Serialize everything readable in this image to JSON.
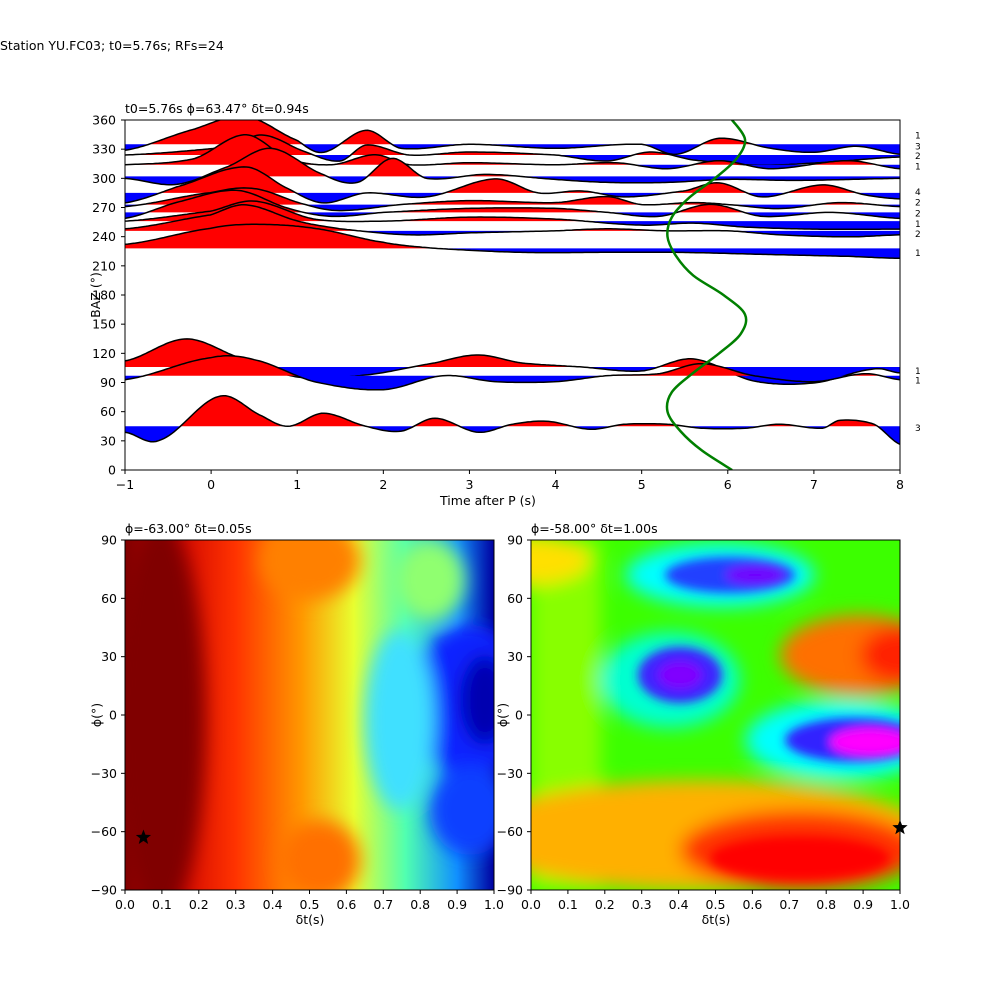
{
  "figure": {
    "suptitle": "Station YU.FC03; t0=5.76s; RFs=24"
  },
  "chart_data": [
    {
      "type": "line",
      "title": "t0=5.76s ϕ=63.47° δt=0.94s",
      "xlabel": "Time after P (s)",
      "ylabel": "BAZ (°)",
      "xlim": [
        -1,
        8
      ],
      "ylim": [
        0,
        360
      ],
      "xticks": [
        -1,
        0,
        1,
        2,
        3,
        4,
        5,
        6,
        7,
        8
      ],
      "yticks": [
        0,
        30,
        60,
        90,
        120,
        150,
        180,
        210,
        240,
        270,
        300,
        330,
        360
      ],
      "grid": false,
      "legend": "none",
      "fill_positive_color": "#ff0000",
      "fill_negative_color": "#0000ff",
      "baz_traces": [
        {
          "baz": 335,
          "count": "1",
          "wave": [
            [
              -1,
              -6
            ],
            [
              -0.2,
              15
            ],
            [
              0.4,
              28
            ],
            [
              1.0,
              4
            ],
            [
              1.3,
              -8
            ],
            [
              1.8,
              14
            ],
            [
              2.2,
              -4
            ],
            [
              3.0,
              0
            ],
            [
              4.0,
              -4
            ],
            [
              5.0,
              0
            ],
            [
              5.4,
              -10
            ],
            [
              5.9,
              6
            ],
            [
              6.5,
              -4
            ],
            [
              7.0,
              -8
            ],
            [
              7.5,
              -2
            ],
            [
              8,
              -10
            ]
          ]
        },
        {
          "baz": 324,
          "count": "3",
          "wave": [
            [
              -1,
              0
            ],
            [
              0.2,
              8
            ],
            [
              0.6,
              20
            ],
            [
              1.1,
              3
            ],
            [
              1.5,
              -6
            ],
            [
              1.8,
              10
            ],
            [
              2.3,
              0
            ],
            [
              3.0,
              3
            ],
            [
              4.0,
              0
            ],
            [
              4.6,
              -6
            ],
            [
              5.1,
              3
            ],
            [
              5.6,
              -5
            ],
            [
              6.3,
              -10
            ],
            [
              7.0,
              -8
            ],
            [
              8,
              -2
            ]
          ]
        },
        {
          "baz": 314,
          "count": "2",
          "wave": [
            [
              -1,
              0
            ],
            [
              -0.2,
              6
            ],
            [
              0.4,
              30
            ],
            [
              0.9,
              6
            ],
            [
              1.4,
              0
            ],
            [
              1.9,
              10
            ],
            [
              2.3,
              0
            ],
            [
              3.0,
              2
            ],
            [
              4.0,
              0
            ],
            [
              4.7,
              2
            ],
            [
              5.3,
              -4
            ],
            [
              5.9,
              4
            ],
            [
              6.5,
              -4
            ],
            [
              7.4,
              4
            ],
            [
              8,
              -4
            ]
          ]
        },
        {
          "baz": 302,
          "count": "1",
          "wave": [
            [
              -1,
              -2
            ],
            [
              -0.4,
              -8
            ],
            [
              0.2,
              10
            ],
            [
              0.7,
              28
            ],
            [
              1.3,
              2
            ],
            [
              1.7,
              -6
            ],
            [
              2.1,
              18
            ],
            [
              2.5,
              -2
            ],
            [
              3.2,
              2
            ],
            [
              4.0,
              -3
            ],
            [
              4.6,
              -6
            ],
            [
              5.3,
              -6
            ],
            [
              6.0,
              -3
            ],
            [
              6.8,
              -4
            ],
            [
              8,
              -2
            ]
          ]
        },
        {
          "baz": 285,
          "count": "4",
          "wave": [
            [
              -1,
              -10
            ],
            [
              -0.4,
              6
            ],
            [
              0.4,
              26
            ],
            [
              0.9,
              4
            ],
            [
              1.3,
              -10
            ],
            [
              1.8,
              0
            ],
            [
              2.5,
              -4
            ],
            [
              3.3,
              14
            ],
            [
              3.8,
              0
            ],
            [
              4.3,
              2
            ],
            [
              4.8,
              -4
            ],
            [
              5.5,
              2
            ],
            [
              5.9,
              10
            ],
            [
              6.4,
              -4
            ],
            [
              7.1,
              8
            ],
            [
              7.6,
              -2
            ],
            [
              8,
              -6
            ]
          ]
        },
        {
          "baz": 273,
          "count": "2",
          "wave": [
            [
              -1,
              -2
            ],
            [
              0.0,
              12
            ],
            [
              0.5,
              16
            ],
            [
              1.1,
              0
            ],
            [
              1.5,
              -6
            ],
            [
              2.2,
              0
            ],
            [
              3.0,
              4
            ],
            [
              4.0,
              2
            ],
            [
              4.6,
              8
            ],
            [
              5.0,
              0
            ],
            [
              5.6,
              2
            ],
            [
              6.0,
              0
            ],
            [
              6.6,
              -4
            ],
            [
              7.3,
              2
            ],
            [
              8,
              -2
            ]
          ]
        },
        {
          "baz": 265,
          "count": "2",
          "wave": [
            [
              -1,
              -6
            ],
            [
              -0.4,
              10
            ],
            [
              0.3,
              22
            ],
            [
              0.9,
              4
            ],
            [
              1.4,
              -4
            ],
            [
              2.0,
              0
            ],
            [
              3.0,
              4
            ],
            [
              4.0,
              4
            ],
            [
              4.6,
              0
            ],
            [
              5.2,
              -4
            ],
            [
              5.8,
              8
            ],
            [
              6.4,
              -4
            ],
            [
              7.2,
              0
            ],
            [
              8,
              -6
            ]
          ]
        },
        {
          "baz": 256,
          "count": "1",
          "wave": [
            [
              -1,
              0
            ],
            [
              0.0,
              10
            ],
            [
              0.5,
              20
            ],
            [
              1.2,
              2
            ],
            [
              2.0,
              0
            ],
            [
              3.0,
              4
            ],
            [
              4.0,
              2
            ],
            [
              5.0,
              -4
            ],
            [
              5.6,
              -2
            ],
            [
              6.2,
              -6
            ],
            [
              7.0,
              -8
            ],
            [
              8,
              -8
            ]
          ]
        },
        {
          "baz": 246,
          "count": "2",
          "wave": [
            [
              -1,
              2
            ],
            [
              0.0,
              16
            ],
            [
              0.4,
              26
            ],
            [
              1.0,
              10
            ],
            [
              1.5,
              2
            ],
            [
              2.3,
              -4
            ],
            [
              3.0,
              -2
            ],
            [
              4.0,
              0
            ],
            [
              4.6,
              2
            ],
            [
              5.3,
              0
            ],
            [
              6.0,
              0
            ],
            [
              6.6,
              -4
            ],
            [
              7.4,
              -6
            ],
            [
              8,
              -4
            ]
          ]
        },
        {
          "baz": 228,
          "count": "1",
          "wave": [
            [
              -1,
              4
            ],
            [
              0.0,
              20
            ],
            [
              0.5,
              24
            ],
            [
              1.2,
              20
            ],
            [
              2.0,
              6
            ],
            [
              2.6,
              0
            ],
            [
              3.6,
              -4
            ],
            [
              4.6,
              -4
            ],
            [
              5.4,
              -4
            ],
            [
              6.4,
              -6
            ],
            [
              7.4,
              -8
            ],
            [
              8,
              -10
            ]
          ]
        },
        {
          "baz": 106,
          "count": "1",
          "wave": [
            [
              -1,
              6
            ],
            [
              -0.3,
              28
            ],
            [
              0.3,
              10
            ],
            [
              1.0,
              -10
            ],
            [
              1.8,
              -8
            ],
            [
              2.6,
              4
            ],
            [
              3.1,
              12
            ],
            [
              3.6,
              4
            ],
            [
              4.3,
              0
            ],
            [
              5.0,
              -4
            ],
            [
              5.6,
              8
            ],
            [
              6.3,
              -14
            ],
            [
              7.0,
              -16
            ],
            [
              7.7,
              -2
            ],
            [
              8,
              -6
            ]
          ]
        },
        {
          "baz": 97,
          "count": "1",
          "wave": [
            [
              -1,
              -4
            ],
            [
              0.0,
              18
            ],
            [
              0.5,
              16
            ],
            [
              1.2,
              -6
            ],
            [
              2.0,
              -14
            ],
            [
              2.7,
              0
            ],
            [
              3.3,
              -6
            ],
            [
              4.0,
              -6
            ],
            [
              4.6,
              0
            ],
            [
              5.2,
              2
            ],
            [
              5.7,
              12
            ],
            [
              6.3,
              0
            ],
            [
              7.0,
              -6
            ],
            [
              7.6,
              2
            ],
            [
              8,
              -4
            ]
          ]
        },
        {
          "baz": 45,
          "count": "3",
          "wave": [
            [
              -1,
              -6
            ],
            [
              -0.6,
              -14
            ],
            [
              0.1,
              30
            ],
            [
              0.6,
              10
            ],
            [
              0.9,
              0
            ],
            [
              1.3,
              13
            ],
            [
              1.8,
              0
            ],
            [
              2.2,
              -5
            ],
            [
              2.6,
              8
            ],
            [
              3.1,
              -6
            ],
            [
              3.5,
              2
            ],
            [
              3.9,
              5
            ],
            [
              4.4,
              -3
            ],
            [
              4.8,
              2
            ],
            [
              5.3,
              2
            ],
            [
              5.7,
              -2
            ],
            [
              6.2,
              -2
            ],
            [
              6.6,
              2
            ],
            [
              7.1,
              -2
            ],
            [
              7.3,
              6
            ],
            [
              7.7,
              2
            ],
            [
              8,
              -18
            ]
          ]
        }
      ],
      "green_curve": {
        "color": "#008000",
        "points": [
          [
            6.05,
            360
          ],
          [
            6.2,
            340
          ],
          [
            6.1,
            320
          ],
          [
            5.85,
            300
          ],
          [
            5.55,
            280
          ],
          [
            5.35,
            260
          ],
          [
            5.3,
            240
          ],
          [
            5.4,
            220
          ],
          [
            5.6,
            200
          ],
          [
            5.95,
            180
          ],
          [
            6.2,
            160
          ],
          [
            6.15,
            140
          ],
          [
            5.9,
            120
          ],
          [
            5.6,
            100
          ],
          [
            5.35,
            80
          ],
          [
            5.3,
            60
          ],
          [
            5.45,
            40
          ],
          [
            5.7,
            20
          ],
          [
            6.05,
            0
          ]
        ]
      },
      "trace_labels": [
        {
          "baz": 345,
          "text": "1"
        },
        {
          "baz": 334,
          "text": "3"
        },
        {
          "baz": 324,
          "text": "2"
        },
        {
          "baz": 313,
          "text": "1"
        },
        {
          "baz": 287,
          "text": "4"
        },
        {
          "baz": 276,
          "text": "2"
        },
        {
          "baz": 265,
          "text": "2"
        },
        {
          "baz": 254,
          "text": "1"
        },
        {
          "baz": 244,
          "text": "2"
        },
        {
          "baz": 224,
          "text": "1"
        },
        {
          "baz": 103,
          "text": "1"
        },
        {
          "baz": 93,
          "text": "1"
        },
        {
          "baz": 44,
          "text": "3"
        }
      ]
    },
    {
      "type": "heatmap",
      "title": "ϕ=-63.00° δt=0.05s",
      "xlabel": "δt(s)",
      "ylabel": "ϕ(°)",
      "xlim": [
        0,
        1
      ],
      "ylim": [
        -90,
        90
      ],
      "xticks": [
        "0.0",
        "0.1",
        "0.2",
        "0.3",
        "0.4",
        "0.5",
        "0.6",
        "0.7",
        "0.8",
        "0.9",
        "1.0"
      ],
      "yticks": [
        "−90",
        "−60",
        "−30",
        "0",
        "30",
        "60",
        "90"
      ],
      "colormap": "jet",
      "best": {
        "dt": 0.05,
        "phi": -63
      }
    },
    {
      "type": "heatmap",
      "title": "ϕ=-58.00° δt=1.00s",
      "xlabel": "δt(s)",
      "ylabel": "ϕ(°)",
      "xlim": [
        0,
        1
      ],
      "ylim": [
        -90,
        90
      ],
      "xticks": [
        "0.0",
        "0.1",
        "0.2",
        "0.3",
        "0.4",
        "0.5",
        "0.6",
        "0.7",
        "0.8",
        "0.9",
        "1.0"
      ],
      "yticks": [
        "−90",
        "−60",
        "−30",
        "0",
        "30",
        "60",
        "90"
      ],
      "colormap": "hsv",
      "best": {
        "dt": 1.0,
        "phi": -58
      }
    }
  ]
}
